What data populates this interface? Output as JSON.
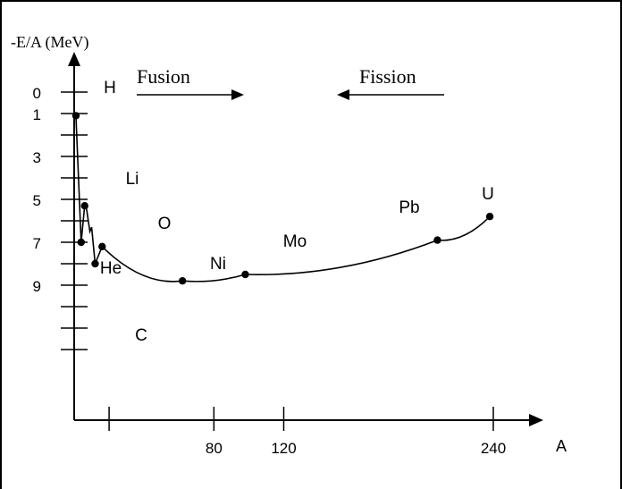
{
  "chart_data": {
    "type": "line",
    "ylabel": "-E/A (MeV)",
    "xlabel": "A",
    "x_ticks": [
      80,
      120,
      240
    ],
    "y_ticks": [
      0,
      1,
      3,
      5,
      7,
      9
    ],
    "xlim": [
      0,
      240
    ],
    "ylim": [
      0,
      16
    ],
    "y_direction": "down",
    "series": [
      {
        "points": [
          {
            "x": 1,
            "y": 1.1
          },
          {
            "x": 4,
            "y": 7.0
          },
          {
            "x": 6,
            "y": 5.3
          },
          {
            "x": 7,
            "y": 5.4
          },
          {
            "x": 9,
            "y": 6.5
          },
          {
            "x": 10,
            "y": 6.3
          },
          {
            "x": 12,
            "y": 8.0
          },
          {
            "x": 16,
            "y": 7.2
          },
          {
            "x": 62,
            "y": 8.8
          },
          {
            "x": 98,
            "y": 8.5
          },
          {
            "x": 208,
            "y": 6.9
          },
          {
            "x": 238,
            "y": 5.8
          }
        ]
      }
    ],
    "dots": [
      {
        "x": 1,
        "y": 1.1
      },
      {
        "x": 4,
        "y": 7.0
      },
      {
        "x": 6,
        "y": 5.3
      },
      {
        "x": 12,
        "y": 8.0
      },
      {
        "x": 16,
        "y": 7.2
      },
      {
        "x": 62,
        "y": 8.8
      },
      {
        "x": 98,
        "y": 8.5
      },
      {
        "x": 208,
        "y": 6.9
      },
      {
        "x": 238,
        "y": 5.8
      }
    ],
    "element_labels": [
      "H",
      "He",
      "Li",
      "C",
      "O",
      "Ni",
      "Mo",
      "Pb",
      "U"
    ],
    "annotations": {
      "fusion": "Fusion",
      "fission": "Fission"
    },
    "grid": false
  }
}
